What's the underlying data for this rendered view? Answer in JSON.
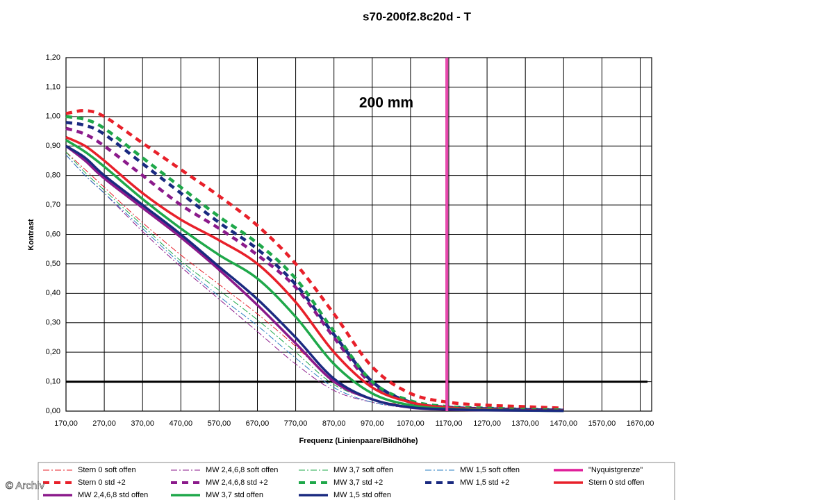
{
  "chart_data": {
    "type": "line",
    "title": "s70-200f2.8c20d - T",
    "x_label": "Frequenz (Linienpaare/Bildhöhe)",
    "y_label": "Kontrast",
    "annotation": "200 mm",
    "watermark": "© Archiv",
    "grid": true,
    "xlim": [
      170,
      1700
    ],
    "ylim": [
      0,
      1.2
    ],
    "xticks": [
      {
        "value": 170,
        "label": "170,00"
      },
      {
        "value": 270,
        "label": "270,00"
      },
      {
        "value": 370,
        "label": "370,00"
      },
      {
        "value": 470,
        "label": "470,00"
      },
      {
        "value": 570,
        "label": "570,00"
      },
      {
        "value": 670,
        "label": "670,00"
      },
      {
        "value": 770,
        "label": "770,00"
      },
      {
        "value": 870,
        "label": "870,00"
      },
      {
        "value": 970,
        "label": "970,00"
      },
      {
        "value": 1070,
        "label": "1070,00"
      },
      {
        "value": 1170,
        "label": "1170,00"
      },
      {
        "value": 1270,
        "label": "1270,00"
      },
      {
        "value": 1370,
        "label": "1370,00"
      },
      {
        "value": 1470,
        "label": "1470,00"
      },
      {
        "value": 1570,
        "label": "1570,00"
      },
      {
        "value": 1670,
        "label": "1670,00"
      }
    ],
    "yticks": [
      {
        "value": 0,
        "label": "0,00"
      },
      {
        "value": 0.1,
        "label": "0,10"
      },
      {
        "value": 0.2,
        "label": "0,20"
      },
      {
        "value": 0.3,
        "label": "0,30"
      },
      {
        "value": 0.4,
        "label": "0,40"
      },
      {
        "value": 0.5,
        "label": "0,50"
      },
      {
        "value": 0.6,
        "label": "0,60"
      },
      {
        "value": 0.7,
        "label": "0,70"
      },
      {
        "value": 0.8,
        "label": "0,80"
      },
      {
        "value": 0.9,
        "label": "0,90"
      },
      {
        "value": 1.0,
        "label": "1,00"
      },
      {
        "value": 1.1,
        "label": "1,10"
      },
      {
        "value": 1.2,
        "label": "1,20"
      }
    ],
    "threshold": 0.1,
    "nyquist": {
      "name": "\"Nyquistgrenze\"",
      "x": 1165,
      "color": "#e01e9a"
    },
    "x": [
      170,
      220,
      270,
      370,
      470,
      570,
      670,
      770,
      870,
      970,
      1070,
      1170,
      1270,
      1370,
      1470
    ],
    "series": [
      {
        "name": "Stern 0 soft offen",
        "color": "#e8202a",
        "style": "dashdot",
        "values": [
          0.88,
          0.82,
          0.76,
          0.64,
          0.53,
          0.43,
          0.33,
          0.22,
          0.1,
          0.04,
          0.02,
          0.01,
          0.005,
          0.003,
          0.002
        ]
      },
      {
        "name": "MW 2,4,6,8 soft offen",
        "color": "#8b1a8b",
        "style": "dashdot",
        "values": [
          0.87,
          0.8,
          0.74,
          0.61,
          0.49,
          0.38,
          0.27,
          0.16,
          0.07,
          0.03,
          0.01,
          0.005,
          0.003,
          0.002,
          0.001
        ]
      },
      {
        "name": "MW 3,7 soft offen",
        "color": "#1fa84a",
        "style": "dashdot",
        "values": [
          0.88,
          0.81,
          0.75,
          0.63,
          0.51,
          0.41,
          0.31,
          0.2,
          0.09,
          0.04,
          0.015,
          0.007,
          0.004,
          0.002,
          0.001
        ]
      },
      {
        "name": "MW 1,5 soft offen",
        "color": "#2a7fc0",
        "style": "dashdot",
        "values": [
          0.87,
          0.8,
          0.74,
          0.62,
          0.5,
          0.39,
          0.29,
          0.18,
          0.08,
          0.03,
          0.012,
          0.006,
          0.003,
          0.002,
          0.001
        ]
      },
      {
        "name": "Stern 0 std +2",
        "color": "#e8202a",
        "style": "dashed",
        "values": [
          1.01,
          1.02,
          1.0,
          0.91,
          0.82,
          0.73,
          0.63,
          0.5,
          0.33,
          0.15,
          0.06,
          0.03,
          0.02,
          0.015,
          0.01
        ]
      },
      {
        "name": "MW 2,4,6,8 std +2",
        "color": "#8b1a8b",
        "style": "dashed",
        "values": [
          0.96,
          0.94,
          0.9,
          0.8,
          0.7,
          0.62,
          0.53,
          0.42,
          0.25,
          0.09,
          0.03,
          0.012,
          0.008,
          0.005,
          0.003
        ]
      },
      {
        "name": "MW 3,7 std +2",
        "color": "#1fa84a",
        "style": "dashed",
        "values": [
          1.0,
          0.99,
          0.96,
          0.86,
          0.76,
          0.66,
          0.57,
          0.45,
          0.27,
          0.1,
          0.035,
          0.015,
          0.01,
          0.006,
          0.004
        ]
      },
      {
        "name": "MW 1,5 std +2",
        "color": "#1a2a80",
        "style": "dashed",
        "values": [
          0.98,
          0.97,
          0.94,
          0.84,
          0.74,
          0.64,
          0.55,
          0.43,
          0.26,
          0.1,
          0.03,
          0.013,
          0.008,
          0.005,
          0.003
        ]
      },
      {
        "name": "Stern 0 std offen",
        "color": "#e8202a",
        "style": "solid",
        "values": [
          0.93,
          0.9,
          0.85,
          0.74,
          0.65,
          0.58,
          0.5,
          0.37,
          0.2,
          0.08,
          0.03,
          0.012,
          0.006,
          0.003,
          0.002
        ]
      },
      {
        "name": "MW 2,4,6,8 std offen",
        "color": "#8b1a8b",
        "style": "solid",
        "values": [
          0.9,
          0.85,
          0.79,
          0.69,
          0.59,
          0.48,
          0.36,
          0.23,
          0.1,
          0.04,
          0.012,
          0.005,
          0.003,
          0.002,
          0.001
        ]
      },
      {
        "name": "MW 3,7 std offen",
        "color": "#1fa84a",
        "style": "solid",
        "values": [
          0.92,
          0.88,
          0.83,
          0.72,
          0.62,
          0.53,
          0.45,
          0.32,
          0.16,
          0.06,
          0.02,
          0.008,
          0.004,
          0.002,
          0.001
        ]
      },
      {
        "name": "MW 1,5 std offen",
        "color": "#1a2a80",
        "style": "solid",
        "values": [
          0.9,
          0.86,
          0.8,
          0.7,
          0.6,
          0.49,
          0.38,
          0.25,
          0.11,
          0.04,
          0.013,
          0.006,
          0.003,
          0.002,
          0.001
        ]
      }
    ]
  }
}
